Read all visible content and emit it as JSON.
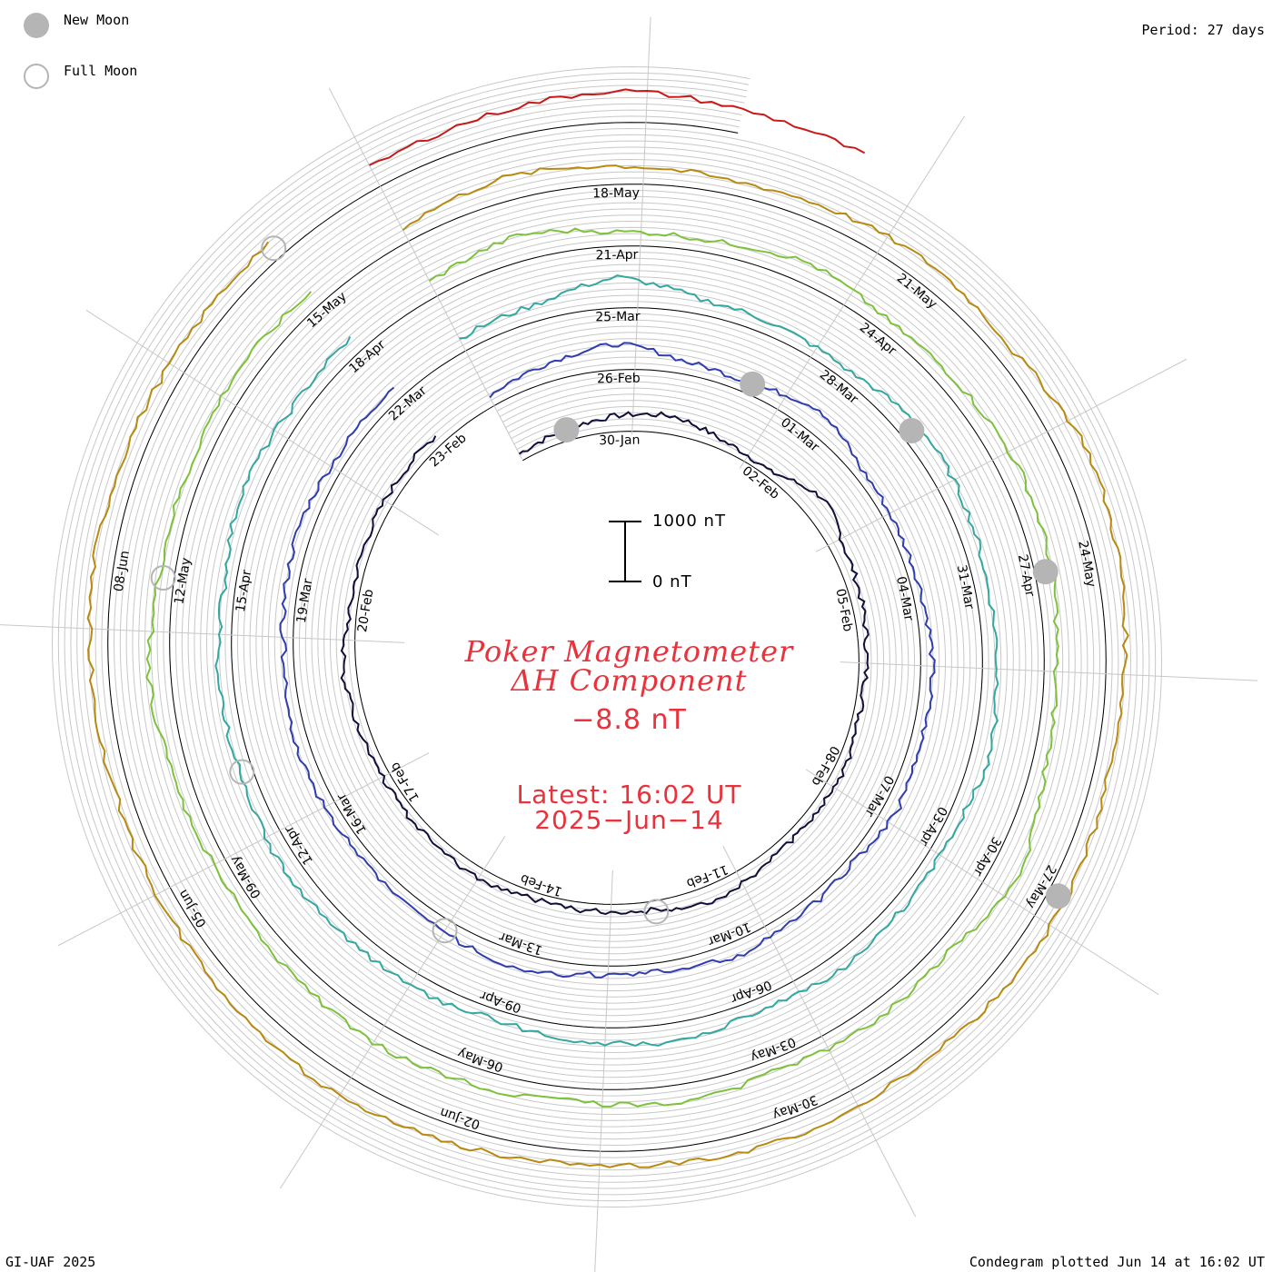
{
  "header": {
    "period": "Period: 27 days",
    "legend": {
      "new_moon": "New Moon",
      "full_moon": "Full Moon"
    }
  },
  "center": {
    "title_line1": "Poker Magnetometer",
    "title_line2": "ΔH Component",
    "current_value": "−8.8 nT",
    "latest_label": "Latest: 16:02 UT",
    "latest_date": "2025−Jun−14",
    "scale_top": "1000 nT",
    "scale_bottom": "0 nT"
  },
  "footer": {
    "credit": "GI-UAF 2025",
    "plotted": "Condegram plotted Jun 14 at 16:02 UT"
  },
  "colors": {
    "title_red": "#e8323c",
    "moon_gray": "#b5b5b5",
    "grid_gray": "#c8c8c8",
    "rotations": [
      "#0f0f3a",
      "#2a1a8c",
      "#2f3db0",
      "#3a76b8",
      "#33a8a0",
      "#35b870",
      "#7dc23a",
      "#a8b51f",
      "#b88a10",
      "#c8580c",
      "#c81818"
    ]
  },
  "chart_data": {
    "type": "line",
    "subtype": "polar spiral condegram",
    "title": "Poker Magnetometer ΔH Component",
    "period_days": 27,
    "scale_nT": [
      0,
      1000
    ],
    "date_labels": [
      "30-Jan",
      "02-Feb",
      "05-Feb",
      "08-Feb",
      "11-Feb",
      "14-Feb",
      "17-Feb",
      "20-Feb",
      "23-Feb",
      "26-Feb",
      "01-Mar",
      "04-Mar",
      "07-Mar",
      "10-Mar",
      "13-Mar",
      "16-Mar",
      "19-Mar",
      "22-Mar",
      "25-Mar",
      "28-Mar",
      "31-Mar",
      "03-Apr",
      "06-Apr",
      "09-Apr",
      "12-Apr",
      "15-Apr",
      "18-Apr",
      "21-Apr",
      "24-Apr",
      "27-Apr",
      "30-Apr",
      "03-May",
      "06-May",
      "09-May",
      "12-May",
      "15-May",
      "18-May",
      "21-May",
      "24-May",
      "27-May",
      "30-May",
      "02-Jun",
      "05-Jun",
      "08-Jun"
    ],
    "new_moons": [
      "29-Jan",
      "28-Feb",
      "29-Mar",
      "27-Apr",
      "27-May"
    ],
    "full_moons": [
      "12-Feb",
      "14-Mar",
      "13-Apr",
      "12-May",
      "11-Jun"
    ],
    "rotations": [
      {
        "start": "28-Jan",
        "values": [
          120,
          180,
          260,
          300,
          140,
          90,
          380,
          210,
          160,
          120,
          100,
          180,
          120,
          160,
          260,
          140,
          120,
          110,
          170,
          150,
          130,
          140,
          220,
          100,
          130,
          150,
          170
        ]
      },
      {
        "start": "24-Feb",
        "values": [
          180,
          300,
          420,
          200,
          160,
          380,
          150,
          120,
          140,
          190,
          170,
          220,
          110,
          160,
          240,
          130,
          150,
          270,
          200,
          180,
          160,
          220,
          140,
          190,
          230,
          170,
          220
        ]
      },
      {
        "start": "23-Mar",
        "values": [
          220,
          260,
          500,
          240,
          200,
          160,
          320,
          280,
          210,
          240,
          300,
          180,
          200,
          260,
          180,
          310,
          230,
          160,
          240,
          210,
          280,
          190,
          240,
          180,
          300,
          220,
          260
        ]
      },
      {
        "start": "19-Apr",
        "values": [
          260,
          420,
          230,
          200,
          340,
          190,
          250,
          320,
          280,
          180,
          240,
          450,
          220,
          260,
          190,
          300,
          210,
          270,
          330,
          260,
          200,
          240,
          360,
          250,
          220,
          290,
          240
        ]
      },
      {
        "start": "16-May",
        "values": [
          240,
          380,
          300,
          220,
          280,
          340,
          260,
          450,
          380,
          300,
          250,
          320,
          280,
          240,
          300,
          260,
          220,
          280,
          360,
          300,
          250,
          230,
          270,
          320,
          290,
          260,
          300
        ]
      },
      {
        "start": "12-Jun",
        "values": [
          340,
          420,
          520,
          380,
          300
        ]
      }
    ]
  }
}
